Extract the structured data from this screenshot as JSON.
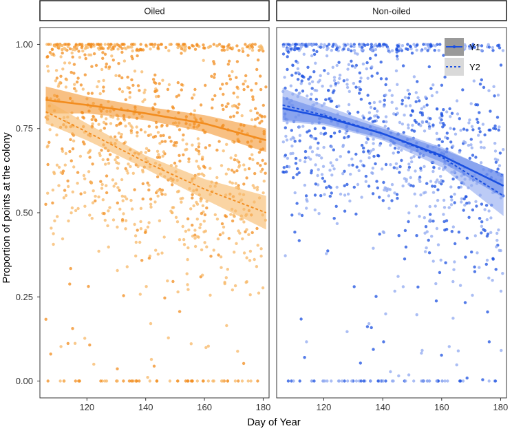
{
  "chart_data": {
    "type": "scatter",
    "xlabel": "Day of Year",
    "ylabel": "Proportion of points at the colony",
    "xlim": [
      104,
      182
    ],
    "ylim": [
      -0.05,
      1.05
    ],
    "xticks": [
      120,
      140,
      160,
      180
    ],
    "yticks": [
      0.0,
      0.25,
      0.5,
      0.75,
      1.0
    ],
    "ytick_labels": [
      "0.00",
      "0.25",
      "0.50",
      "0.75",
      "1.00"
    ],
    "legend": {
      "position": "top-right",
      "entries": [
        {
          "label": "Y1",
          "linetype": "solid"
        },
        {
          "label": "Y2",
          "linetype": "dashed"
        }
      ]
    },
    "panels": [
      {
        "strip": "Oiled",
        "color": "#f28c1e",
        "color_light": "#f7b766",
        "series": [
          {
            "name": "Y1",
            "x": [
              106,
              120,
              140,
              160,
              181
            ],
            "y": [
              0.835,
              0.82,
              0.795,
              0.765,
              0.715
            ],
            "ci_halfwidth": [
              0.04,
              0.025,
              0.02,
              0.025,
              0.035
            ]
          },
          {
            "name": "Y2",
            "x": [
              106,
              120,
              140,
              160,
              181
            ],
            "y": [
              0.8,
              0.74,
              0.65,
              0.57,
              0.5
            ],
            "ci_halfwidth": [
              0.035,
              0.025,
              0.02,
              0.03,
              0.05
            ]
          }
        ]
      },
      {
        "strip": "Non-oiled",
        "color": "#1a4fe0",
        "color_light": "#8fa8f0",
        "series": [
          {
            "name": "Y1",
            "x": [
              106,
              120,
              140,
              160,
              181
            ],
            "y": [
              0.81,
              0.785,
              0.735,
              0.67,
              0.58
            ],
            "ci_halfwidth": [
              0.035,
              0.02,
              0.015,
              0.02,
              0.035
            ]
          },
          {
            "name": "Y2",
            "x": [
              106,
              120,
              140,
              160,
              181
            ],
            "y": [
              0.82,
              0.79,
              0.735,
              0.665,
              0.55
            ],
            "ci_halfwidth": [
              0.05,
              0.03,
              0.02,
              0.03,
              0.06
            ]
          }
        ]
      }
    ]
  }
}
